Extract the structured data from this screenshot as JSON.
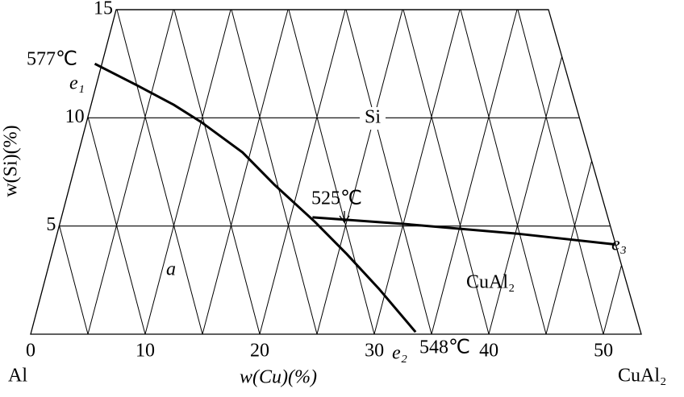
{
  "chart_data": {
    "type": "line",
    "xlabel": "w(Cu)(%)",
    "ylabel": "w(Si)(%)",
    "xlim": [
      0,
      53.3
    ],
    "ylim": [
      0,
      15
    ],
    "xticks": [
      0,
      10,
      20,
      30,
      40,
      50
    ],
    "yticks": [
      5,
      10,
      15
    ],
    "color": "#000000",
    "series": [
      {
        "x": [
          5.6,
          9.3,
          12.5,
          14.9,
          18.5,
          21.3,
          24.8,
          27.6,
          30.4,
          33.6
        ],
        "values": [
          12.5,
          11.5,
          10.6,
          9.8,
          8.4,
          6.9,
          5.2,
          3.7,
          2.1,
          0.1
        ]
      },
      {
        "x": [
          24.6,
          32.5,
          42.4,
          51.0
        ],
        "values": [
          5.4,
          5.1,
          4.65,
          4.15
        ]
      }
    ],
    "annotations": [
      "577℃",
      "e₁",
      "Si",
      "525℃",
      "a",
      "CuAl₂",
      "e₃",
      "e₂",
      "548℃",
      "Al",
      "CuAl₂"
    ]
  }
}
